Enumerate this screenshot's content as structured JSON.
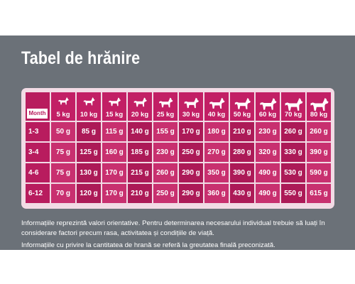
{
  "title": "Tabel de hrănire",
  "table": {
    "corner_label": "Month",
    "weights": [
      "5 kg",
      "10 kg",
      "15 kg",
      "20 kg",
      "25 kg",
      "30 kg",
      "40 kg",
      "50 kg",
      "60 kg",
      "70 kg",
      "80 kg"
    ],
    "icon": "dog-icon",
    "rows": [
      {
        "label": "1-3",
        "values": [
          "50 g",
          "85 g",
          "115 g",
          "140 g",
          "155 g",
          "170 g",
          "180 g",
          "210 g",
          "230 g",
          "260 g",
          "260 g"
        ]
      },
      {
        "label": "3-4",
        "values": [
          "75 g",
          "125 g",
          "160 g",
          "185 g",
          "230 g",
          "250 g",
          "270 g",
          "280 g",
          "320 g",
          "330 g",
          "390 g"
        ]
      },
      {
        "label": "4-6",
        "values": [
          "75 g",
          "130 g",
          "170 g",
          "215 g",
          "260 g",
          "290 g",
          "350 g",
          "390 g",
          "490 g",
          "530 g",
          "590 g"
        ]
      },
      {
        "label": "6-12",
        "values": [
          "70 g",
          "120 g",
          "170 g",
          "210 g",
          "250 g",
          "290 g",
          "360 g",
          "430 g",
          "490 g",
          "550 g",
          "615 g"
        ]
      }
    ]
  },
  "notes": [
    "Informațiile reprezintă valori orientative. Pentru determinarea necesarului individual trebuie să luați în considerare factori precum rasa, activitatea și condițiile de viață.",
    "Informațiile cu privire la cantitatea de hrană se referă la greutatea finală preconizată."
  ],
  "colors": {
    "panel": "#6b7178",
    "header": "#c21f65",
    "cell": "#c8306f",
    "cell_alt": "#ac1a57",
    "table_bg": "#f2dbe5"
  }
}
